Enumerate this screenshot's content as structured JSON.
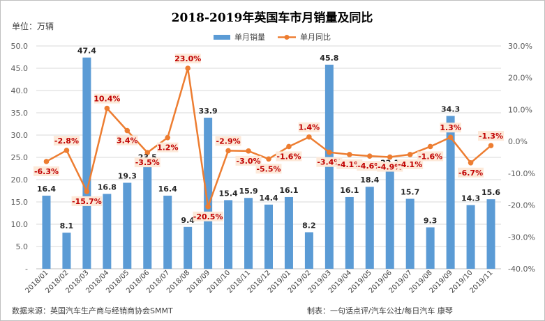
{
  "chart_data": {
    "type": "bar",
    "title": "2018-2019年英国车市月销量及同比",
    "unit_label": "单位：万辆",
    "categories": [
      "2018/01",
      "2018/02",
      "2018/03",
      "2018/04",
      "2018/05",
      "2018/06",
      "2018/07",
      "2018/08",
      "2018/09",
      "2018/10",
      "2018/11",
      "2018/12",
      "2019/01",
      "2019/02",
      "2019/03",
      "2019/04",
      "2019/05",
      "2019/06",
      "2019/07",
      "2019/08",
      "2019/09",
      "2019/10",
      "2019/11"
    ],
    "series": [
      {
        "name": "单月销量",
        "type": "bar",
        "axis": "left",
        "color": "#5b9bd5",
        "values": [
          16.4,
          8.1,
          47.4,
          16.8,
          19.3,
          23.5,
          16.4,
          9.4,
          33.9,
          15.4,
          15.9,
          14.4,
          16.1,
          8.2,
          45.8,
          16.1,
          18.4,
          22.3,
          15.7,
          9.3,
          34.3,
          14.3,
          15.6
        ],
        "labels": [
          "16.4",
          "8.1",
          "47.4",
          "16.8",
          "19.3",
          "23.5",
          "16.4",
          "9.4",
          "33.9",
          "15.4",
          "15.9",
          "14.4",
          "16.1",
          "8.2",
          "45.8",
          "16.1",
          "18.4",
          "22.3",
          "15.7",
          "9.3",
          "34.3",
          "14.3",
          "15.6"
        ]
      },
      {
        "name": "单月同比",
        "type": "line",
        "axis": "right",
        "color": "#ed7d31",
        "values": [
          -6.3,
          -2.8,
          -15.7,
          10.4,
          3.4,
          -3.5,
          1.2,
          23.0,
          -20.5,
          -2.9,
          -3.0,
          -5.5,
          -1.6,
          1.4,
          -3.4,
          -4.1,
          -4.6,
          -4.9,
          -4.1,
          -1.6,
          1.3,
          -6.7,
          -1.3
        ],
        "labels": [
          "-6.3%",
          "-2.8%",
          "-15.7%",
          "10.4%",
          "3.4%",
          "-3.5%",
          "1.2%",
          "23.0%",
          "-20.5%",
          "-2.9%",
          "-3.0%",
          "-5.5%",
          "-1.6%",
          "1.4%",
          "-3.4%",
          "-4.1%",
          "-4.6%",
          "-4.9%",
          "-4.1%",
          "-1.6%",
          "1.3%",
          "-6.7%",
          "-1.3%"
        ]
      }
    ],
    "ylim_left": [
      0,
      50
    ],
    "ylim_right": [
      -40,
      30
    ],
    "left_ticks": [
      "-",
      "5.0",
      "10.0",
      "15.0",
      "20.0",
      "25.0",
      "30.0",
      "35.0",
      "40.0",
      "45.0",
      "50.0"
    ],
    "right_ticks": [
      "-40.0%",
      "-30.0%",
      "-20.0%",
      "-10.0%",
      "0.0%",
      "10.0%",
      "20.0%",
      "30.0%"
    ],
    "grid": true,
    "legend_position": "top-center"
  },
  "footer": {
    "source": "数据来源：英国汽车生产商与经销商协会SMMT",
    "credit": "制表：一句话点评/汽车公社/每日汽车 康琴"
  },
  "colors": {
    "bar": "#5b9bd5",
    "line": "#ed7d31",
    "line_label_bg": "#fde9d9",
    "line_label_text": "#c00000",
    "grid": "#d9d9d9"
  }
}
